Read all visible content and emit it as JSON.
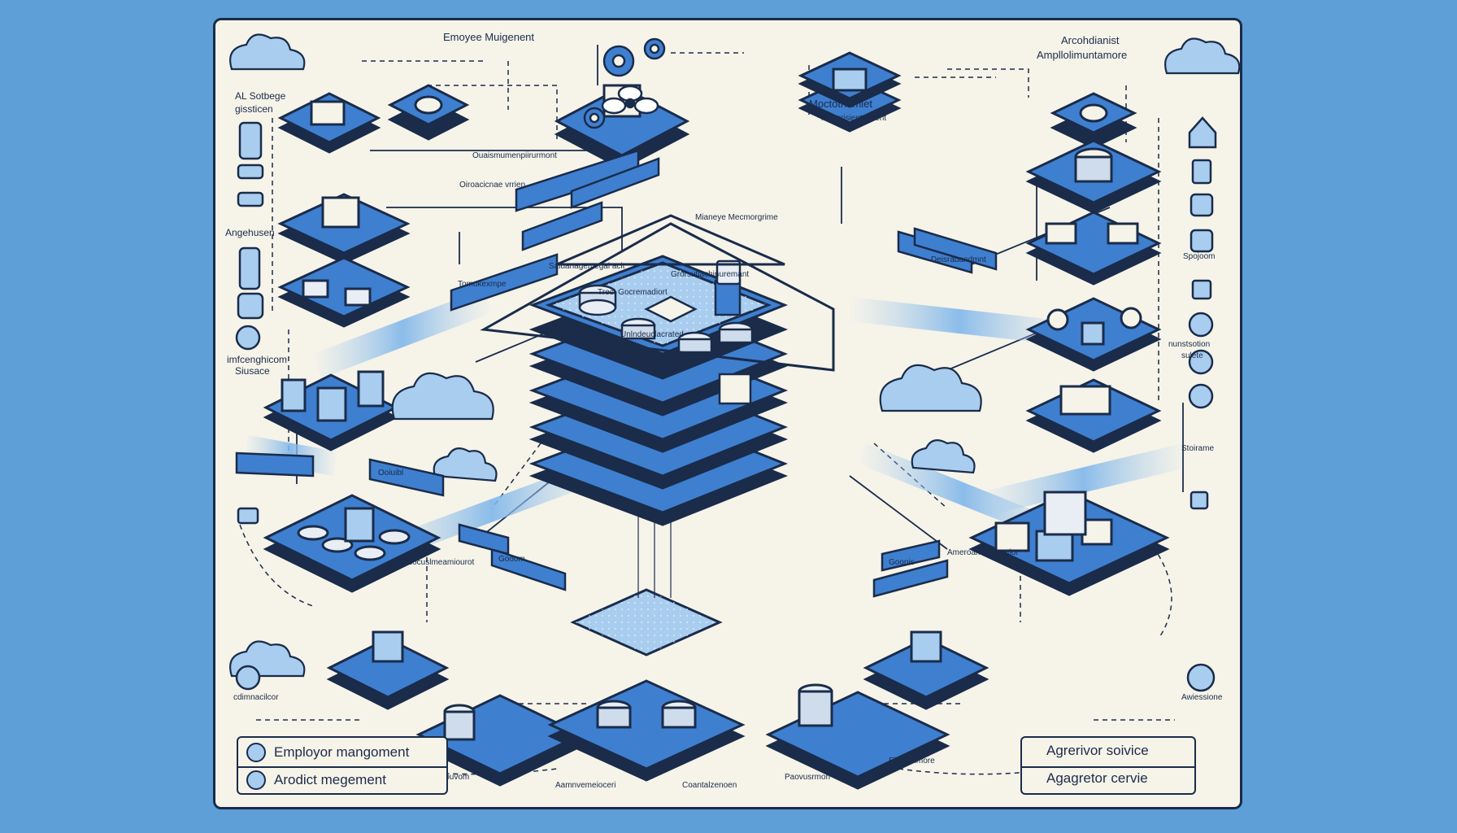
{
  "colors": {
    "background": "#5d9fd6",
    "panel": "#f6f3e9",
    "navy": "#1a2c4a",
    "blue": "#3f7fd0",
    "light_blue": "#a9cdef"
  },
  "top_labels": {
    "title_top": "Emoyee Muigenent",
    "title_right_1": "Arcohdianist",
    "title_right_2": "Ampllolimuntamore",
    "moctonamet_1": "Moctotnamlet",
    "moctonamet_2": "inimerisientsnvent",
    "left_sotbage_1": "AL Sotbege",
    "left_sotbage_2": "gissticen"
  },
  "left_sidebar": {
    "label_1": "Angehusen",
    "label_2_line1": "imfcenghicom",
    "label_2_line2": "Siusace",
    "label_3": "cdimnacilcor"
  },
  "right_sidebar": {
    "label_1": "Spojoom",
    "label_2_line1": "nunstsotion",
    "label_2_line2": "sulete",
    "label_3": "Stoirame",
    "label_4": "Awiessione"
  },
  "center_labels": {
    "top_banner": "Mianeye Mecmorgrime",
    "stack_label": "Saiuanagemegal acit",
    "inner_label": "Trect Gocremadiort",
    "inner_label_2": "Grorsutiachinuremant",
    "core_label": "Unlndeuclacrated",
    "right_banner": "Deisrabandmnt",
    "left_banner_1": "Oiroacicnae vrrien",
    "left_banner_2": "Tomukexmpe",
    "top_left_note": "Ouaismumenpiirurmont",
    "mid_left_pill": "Ooiuibl",
    "bottom_left_pill": "Gooom",
    "bottom_right_pill": "Goonis",
    "bottom_left_note": "Grsocuslmeamiourot",
    "bottom_right_note": "Ameroamenthnatior"
  },
  "bottom_labels": {
    "label_1": "eriopasiitlouvom",
    "label_2": "Aamnvemeioceri",
    "label_3": "Coantalzenoen",
    "label_4": "Paovusrmori",
    "label_5": "Elloermmore"
  },
  "legend_left": {
    "row_1": "Employor mangoment",
    "row_2": "Arodict megement"
  },
  "legend_right": {
    "row_1": "Agrerivor soivice",
    "row_2": "Agagretor cervie"
  }
}
